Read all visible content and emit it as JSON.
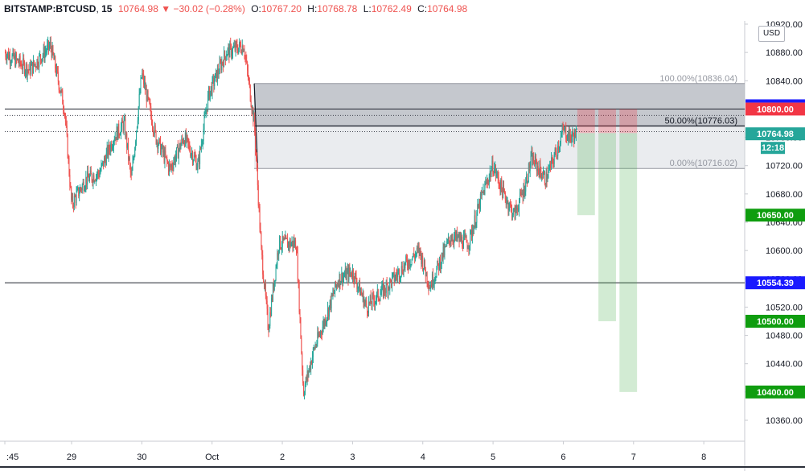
{
  "header": {
    "symbol": "BITSTAMP:BTCUSD",
    "interval": "15",
    "last": "10764.98",
    "change_arrow": "▼",
    "change": "−30.02 (−0.28%)",
    "o_label": "O:",
    "o_value": "10767.20",
    "h_label": "H:",
    "h_value": "10768.78",
    "l_label": "L:",
    "l_value": "10762.49",
    "c_label": "C:",
    "c_value": "10764.98"
  },
  "currency": "USD",
  "countdown": "12:18",
  "colors": {
    "up": "#26a69a",
    "down": "#ef5350",
    "level_blue": "#1a1aff",
    "target_green": "#0f9d0f",
    "stop_red": "#f23645",
    "fib_zone": "#b2b5be"
  },
  "chart_data": {
    "type": "candlestick",
    "symbol": "BITSTAMP:BTCUSD",
    "timeframe": "15",
    "y_axis": {
      "ticks": [
        10360,
        10400,
        10440,
        10480,
        10520,
        10560,
        10600,
        10640,
        10680,
        10720,
        10760,
        10800,
        10840,
        10880,
        10920
      ],
      "tick_labels": [
        "10360.00",
        "10400.00",
        "10440.00",
        "10480.00",
        "10520.00",
        "10560.00",
        "10600.00",
        "10640.00",
        "10680.00",
        "10720.00",
        "10760.00",
        "10800.00",
        "10840.00",
        "10880.00",
        "10920.00"
      ],
      "range": [
        10320,
        10930
      ]
    },
    "x_axis": {
      "labels": [
        ":45",
        "29",
        "30",
        "Oct",
        "2",
        "3",
        "4",
        "5",
        "6",
        "7",
        "8"
      ],
      "day_index": [
        -0.95,
        0,
        1,
        2,
        3,
        4,
        5,
        6,
        7,
        8,
        9
      ],
      "range_days": [
        -0.95,
        9.6
      ]
    },
    "price_path": [
      {
        "d": -0.95,
        "p": 10880
      },
      {
        "d": -0.6,
        "p": 10855
      },
      {
        "d": -0.3,
        "p": 10890
      },
      {
        "d": -0.1,
        "p": 10800
      },
      {
        "d": 0.0,
        "p": 10665
      },
      {
        "d": 0.2,
        "p": 10700
      },
      {
        "d": 0.4,
        "p": 10710
      },
      {
        "d": 0.6,
        "p": 10760
      },
      {
        "d": 0.75,
        "p": 10780
      },
      {
        "d": 0.85,
        "p": 10700
      },
      {
        "d": 1.0,
        "p": 10850
      },
      {
        "d": 1.2,
        "p": 10760
      },
      {
        "d": 1.4,
        "p": 10715
      },
      {
        "d": 1.6,
        "p": 10760
      },
      {
        "d": 1.8,
        "p": 10720
      },
      {
        "d": 1.95,
        "p": 10820
      },
      {
        "d": 2.2,
        "p": 10880
      },
      {
        "d": 2.45,
        "p": 10890
      },
      {
        "d": 2.6,
        "p": 10780
      },
      {
        "d": 2.7,
        "p": 10600
      },
      {
        "d": 2.8,
        "p": 10490
      },
      {
        "d": 2.95,
        "p": 10610
      },
      {
        "d": 3.2,
        "p": 10610
      },
      {
        "d": 3.3,
        "p": 10400
      },
      {
        "d": 3.45,
        "p": 10460
      },
      {
        "d": 3.6,
        "p": 10500
      },
      {
        "d": 3.8,
        "p": 10560
      },
      {
        "d": 4.0,
        "p": 10570
      },
      {
        "d": 4.2,
        "p": 10520
      },
      {
        "d": 4.5,
        "p": 10550
      },
      {
        "d": 4.75,
        "p": 10580
      },
      {
        "d": 4.95,
        "p": 10600
      },
      {
        "d": 5.1,
        "p": 10550
      },
      {
        "d": 5.4,
        "p": 10620
      },
      {
        "d": 5.65,
        "p": 10610
      },
      {
        "d": 5.85,
        "p": 10680
      },
      {
        "d": 6.0,
        "p": 10720
      },
      {
        "d": 6.15,
        "p": 10680
      },
      {
        "d": 6.3,
        "p": 10650
      },
      {
        "d": 6.45,
        "p": 10690
      },
      {
        "d": 6.55,
        "p": 10730
      },
      {
        "d": 6.75,
        "p": 10700
      },
      {
        "d": 6.9,
        "p": 10740
      },
      {
        "d": 7.0,
        "p": 10770
      },
      {
        "d": 7.1,
        "p": 10760
      },
      {
        "d": 7.2,
        "p": 10765
      }
    ],
    "horizontal_levels": [
      {
        "price": 10800.0,
        "label": "10800.00",
        "color": "#f23645"
      },
      {
        "price": 10554.39,
        "label": "10554.39",
        "color": "#1a1aff"
      }
    ],
    "dotted_levels": [
      10791,
      10768
    ],
    "fib_retracement": {
      "start_day": 2.6,
      "end_day": 9.6,
      "levels": [
        {
          "ratio": 1.0,
          "price": 10836.04,
          "label": "100.00%(10836.04)"
        },
        {
          "ratio": 0.5,
          "price": 10776.03,
          "label": "50.00%(10776.03)"
        },
        {
          "ratio": 0.0,
          "price": 10716.02,
          "label": "0.00%(10716.02)"
        }
      ]
    },
    "positions": [
      {
        "day_start": 7.2,
        "day_end": 7.45,
        "entry": 10766,
        "stop": 10800,
        "target": 10650
      },
      {
        "day_start": 7.5,
        "day_end": 7.75,
        "entry": 10766,
        "stop": 10800,
        "target": 10500
      },
      {
        "day_start": 7.8,
        "day_end": 8.05,
        "entry": 10766,
        "stop": 10800,
        "target": 10400
      }
    ],
    "price_labels": [
      {
        "price": 10800.0,
        "text": "10800.00",
        "bg": "#f23645",
        "fg": "#ffffff"
      },
      {
        "price": 10764.98,
        "text": "10764.98",
        "bg": "#26a69a",
        "fg": "#ffffff"
      },
      {
        "price": 10650.0,
        "text": "10650.00",
        "bg": "#0f9d0f",
        "fg": "#ffffff"
      },
      {
        "price": 10554.39,
        "text": "10554.39",
        "bg": "#1a1aff",
        "fg": "#ffffff"
      },
      {
        "price": 10500.0,
        "text": "10500.00",
        "bg": "#0f9d0f",
        "fg": "#ffffff"
      },
      {
        "price": 10400.0,
        "text": "10400.00",
        "bg": "#0f9d0f",
        "fg": "#ffffff"
      }
    ],
    "last_price": 10764.98
  }
}
